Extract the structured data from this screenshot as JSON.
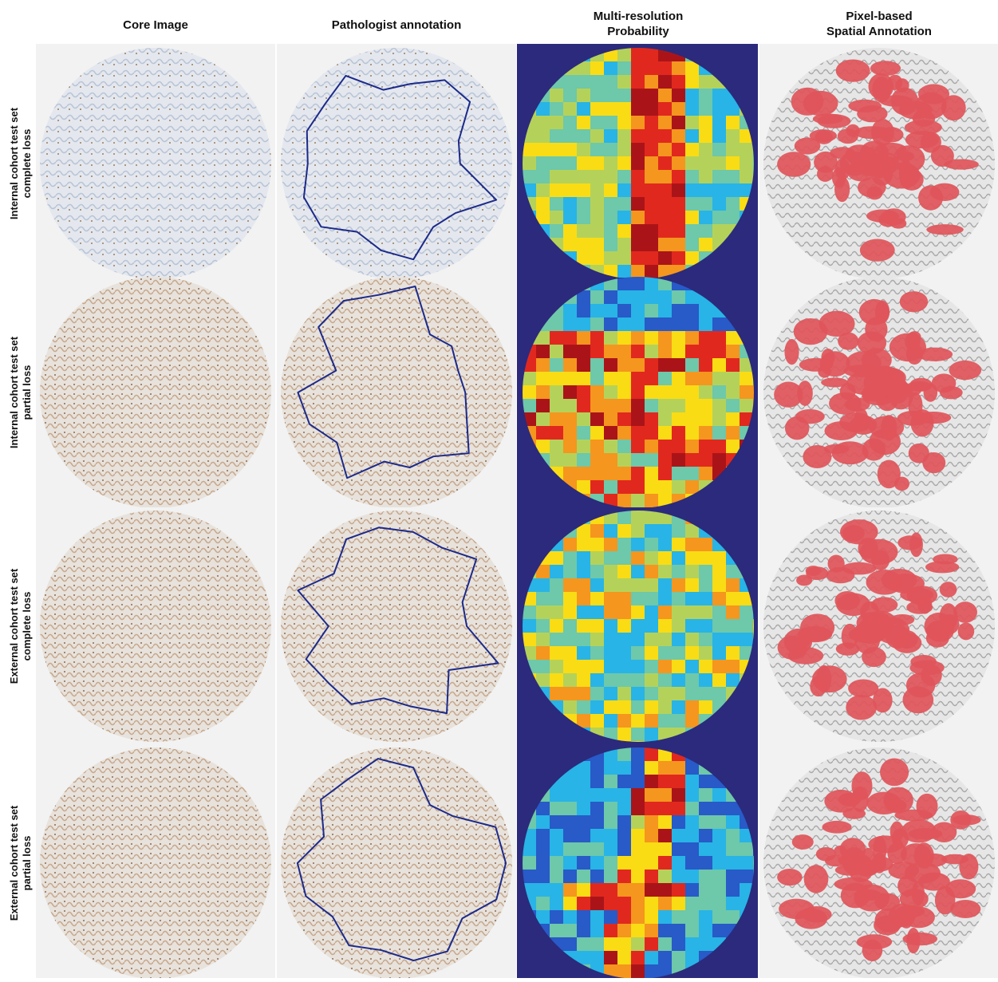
{
  "columns": [
    "Core Image",
    "Pathologist annotation",
    "Multi-resolution\nProbability",
    "Pixel-based\nSpatial Annotation"
  ],
  "rows": [
    [
      "Internal cohort test set",
      "complete loss"
    ],
    [
      "Internal cohort test set",
      "partial loss"
    ],
    [
      "External cohort test set",
      "complete loss"
    ],
    [
      "External cohort test set",
      "partial loss"
    ]
  ]
}
